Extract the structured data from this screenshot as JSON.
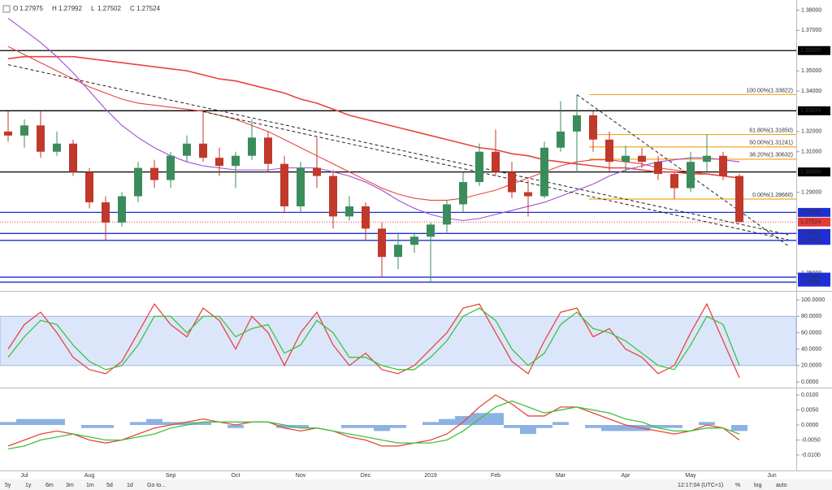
{
  "header": {
    "ohlc": [
      {
        "label": "O",
        "value": "1.27975"
      },
      {
        "label": "H",
        "value": "1.27992"
      },
      {
        "label": "L",
        "value": "1.27502"
      },
      {
        "label": "C",
        "value": "1.27524"
      }
    ]
  },
  "chart_data": {
    "type": "candlestick",
    "categories": [
      null,
      "Jul",
      null,
      null,
      null,
      "Aug",
      null,
      null,
      null,
      null,
      "Sep",
      null,
      null,
      null,
      "Oct",
      null,
      null,
      null,
      "Nov",
      null,
      null,
      null,
      "Dec",
      null,
      null,
      null,
      "2019",
      null,
      null,
      null,
      "Feb",
      null,
      null,
      null,
      "Mar",
      null,
      null,
      null,
      "Apr",
      null,
      null,
      null,
      "May",
      null,
      null,
      null,
      null,
      "Jun",
      null
    ],
    "open": [
      1.32,
      1.318,
      1.323,
      1.31,
      1.314,
      1.3,
      1.285,
      1.275,
      1.288,
      1.302,
      1.296,
      1.308,
      1.314,
      1.307,
      1.303,
      1.308,
      1.317,
      1.304,
      1.283,
      1.302,
      1.298,
      1.278,
      1.283,
      1.272,
      1.258,
      1.264,
      1.268,
      1.274,
      1.284,
      1.295,
      1.31,
      1.3,
      1.29,
      1.288,
      1.312,
      1.32,
      1.328,
      1.316,
      1.305,
      1.308,
      1.305,
      1.299,
      1.292,
      1.305,
      1.308,
      1.298,
      null,
      null,
      null
    ],
    "high": [
      1.33,
      1.326,
      1.33,
      1.32,
      1.316,
      1.302,
      1.288,
      1.29,
      1.305,
      1.306,
      1.31,
      1.318,
      1.3298,
      1.312,
      1.31,
      1.326,
      1.32,
      1.308,
      1.305,
      1.317,
      1.301,
      1.288,
      1.285,
      1.275,
      1.27,
      1.27,
      1.275,
      1.286,
      1.3,
      1.314,
      1.321,
      1.305,
      1.296,
      1.315,
      1.335,
      1.3382,
      1.33,
      1.32,
      1.313,
      1.312,
      1.308,
      1.3,
      1.31,
      1.3185,
      1.31,
      1.299,
      null,
      null,
      null
    ],
    "low": [
      1.315,
      1.312,
      1.307,
      1.308,
      1.298,
      1.282,
      1.2662,
      1.273,
      1.285,
      1.292,
      1.292,
      1.305,
      1.305,
      1.298,
      1.292,
      1.306,
      1.3,
      1.28,
      1.28,
      1.292,
      1.272,
      1.276,
      1.266,
      1.248,
      1.252,
      1.26,
      1.2456,
      1.27,
      1.28,
      1.293,
      1.298,
      1.287,
      1.278,
      1.287,
      1.31,
      1.3,
      1.31,
      1.3,
      1.3,
      1.302,
      1.296,
      1.2866,
      1.29,
      1.3,
      1.296,
      1.275,
      null,
      null,
      null
    ],
    "close": [
      1.318,
      1.323,
      1.31,
      1.314,
      1.3,
      1.285,
      1.275,
      1.288,
      1.302,
      1.296,
      1.308,
      1.314,
      1.307,
      1.303,
      1.308,
      1.317,
      1.304,
      1.283,
      1.302,
      1.298,
      1.278,
      1.283,
      1.272,
      1.258,
      1.264,
      1.268,
      1.274,
      1.284,
      1.295,
      1.31,
      1.3,
      1.29,
      1.288,
      1.312,
      1.32,
      1.328,
      1.316,
      1.305,
      1.308,
      1.305,
      1.299,
      1.292,
      1.305,
      1.308,
      1.298,
      1.27524,
      null,
      null,
      null
    ],
    "up_color": "#3b8c5c",
    "down_color": "#c0392b",
    "ylim": [
      1.2416,
      1.385
    ],
    "yticks": [
      {
        "value": 1.38,
        "label": "1.38000"
      },
      {
        "value": 1.37,
        "label": "1.37000"
      },
      {
        "value": 1.35,
        "label": "1.35000"
      },
      {
        "value": 1.34,
        "label": "1.34000"
      },
      {
        "value": 1.32,
        "label": "1.32000"
      },
      {
        "value": 1.31,
        "label": "1.31000"
      },
      {
        "value": 1.29,
        "label": "1.29000"
      },
      {
        "value": 1.25,
        "label": "1.25000"
      }
    ],
    "moving_averages": [
      {
        "color": "#e8453c",
        "values": [
          1.356,
          1.357,
          1.357,
          1.357,
          1.357,
          1.356,
          1.355,
          1.354,
          1.353,
          1.352,
          1.351,
          1.35,
          1.348,
          1.346,
          1.345,
          1.343,
          1.341,
          1.339,
          1.336,
          1.334,
          1.331,
          1.328,
          1.326,
          1.324,
          1.322,
          1.32,
          1.318,
          1.316,
          1.314,
          1.312,
          1.311,
          1.309,
          1.308,
          1.306,
          1.305,
          1.304,
          1.303,
          1.302,
          1.302,
          1.301,
          1.3,
          1.3,
          1.299,
          1.299,
          1.298,
          1.297,
          null,
          null,
          null
        ]
      },
      {
        "color": "#e8453c",
        "values": [
          1.362,
          1.358,
          1.354,
          1.35,
          1.346,
          1.342,
          1.339,
          1.336,
          1.334,
          1.333,
          1.332,
          1.331,
          1.33,
          1.328,
          1.326,
          1.323,
          1.32,
          1.316,
          1.312,
          1.308,
          1.304,
          1.3,
          1.296,
          1.292,
          1.289,
          1.287,
          1.286,
          1.286,
          1.287,
          1.289,
          1.291,
          1.294,
          1.297,
          1.3,
          1.303,
          1.305,
          1.306,
          1.306,
          1.305,
          1.304,
          1.302,
          1.301,
          1.3,
          1.299,
          1.298,
          1.297,
          null,
          null,
          null
        ]
      },
      {
        "color": "#a24bd8",
        "values": [
          1.376,
          1.37,
          1.364,
          1.357,
          1.349,
          1.34,
          1.331,
          1.323,
          1.317,
          1.312,
          1.308,
          1.305,
          1.303,
          1.302,
          1.301,
          1.301,
          1.301,
          1.302,
          1.302,
          1.302,
          1.3,
          1.298,
          1.295,
          1.291,
          1.286,
          1.282,
          1.279,
          1.277,
          1.276,
          1.277,
          1.279,
          1.281,
          1.283,
          1.285,
          1.288,
          1.291,
          1.294,
          1.298,
          1.301,
          1.303,
          1.305,
          1.306,
          1.307,
          1.307,
          1.306,
          1.305,
          null,
          null,
          null
        ]
      }
    ],
    "levels": [
      {
        "value": 1.36,
        "label": "1.36000",
        "color": "#000000"
      },
      {
        "value": 1.33024,
        "label": "1.33024",
        "color": "#000000"
      },
      {
        "value": 1.3,
        "label": "1.30000",
        "color": "#000000"
      },
      {
        "value": 1.28,
        "label": "1.28000",
        "color": "#1f2fd6"
      },
      {
        "value": 1.2696,
        "label": "1.26960",
        "color": "#1f2fd6"
      },
      {
        "value": 1.26618,
        "label": "1.26618",
        "color": "#1f2fd6"
      },
      {
        "value": 1.24801,
        "label": "1.24801",
        "color": "#1f2fd6"
      },
      {
        "value": 1.24555,
        "label": "1.24555",
        "color": "#1f2fd6"
      }
    ],
    "last_price": {
      "value": 1.27524,
      "label": "1.27524",
      "color": "#e53935"
    },
    "fibonacci": {
      "color": "#f5a623",
      "levels": [
        {
          "value": 1.33822,
          "label": "100.00%(1.33822)"
        },
        {
          "value": 1.3185,
          "label": "61.80%(1.31850)"
        },
        {
          "value": 1.31241,
          "label": "50.00%(1.31241)"
        },
        {
          "value": 1.30632,
          "label": "38.20%(1.30632)"
        },
        {
          "value": 1.2866,
          "label": "0.00%(1.28660)"
        }
      ]
    },
    "trendlines": [
      {
        "x": [
          0,
          48
        ],
        "values": [
          1.353,
          1.269
        ]
      },
      {
        "x": [
          12,
          48
        ],
        "values": [
          1.3298,
          1.2665
        ]
      },
      {
        "x": [
          35,
          48
        ],
        "values": [
          1.3382,
          1.2635
        ]
      }
    ],
    "stochastic": {
      "ylim": [
        -6,
        110
      ],
      "band": [
        20,
        80
      ],
      "yticks": [
        {
          "value": 100,
          "label": "100.0000"
        },
        {
          "value": 80,
          "label": "80.0000"
        },
        {
          "value": 60,
          "label": "60.0000"
        },
        {
          "value": 40,
          "label": "40.0000"
        },
        {
          "value": 20,
          "label": "20.0000"
        },
        {
          "value": 0,
          "label": "0.0000"
        }
      ],
      "series": [
        {
          "color": "#e8453c",
          "values": [
            40,
            70,
            85,
            60,
            30,
            15,
            10,
            25,
            60,
            95,
            70,
            55,
            90,
            75,
            40,
            80,
            60,
            20,
            60,
            85,
            45,
            20,
            35,
            15,
            10,
            20,
            40,
            60,
            90,
            95,
            60,
            25,
            10,
            50,
            85,
            90,
            55,
            65,
            40,
            30,
            10,
            20,
            60,
            95,
            50,
            5,
            null,
            null,
            null
          ]
        },
        {
          "color": "#3fc23f",
          "values": [
            30,
            55,
            75,
            70,
            45,
            25,
            15,
            20,
            45,
            80,
            80,
            60,
            80,
            80,
            55,
            65,
            70,
            35,
            45,
            75,
            60,
            30,
            30,
            20,
            15,
            15,
            30,
            50,
            80,
            90,
            75,
            40,
            20,
            35,
            70,
            85,
            65,
            60,
            50,
            35,
            20,
            15,
            45,
            80,
            70,
            20,
            null,
            null,
            null
          ]
        }
      ]
    },
    "macd": {
      "ylim": [
        -0.0149,
        0.0122
      ],
      "yticks": [
        {
          "value": 0.01,
          "label": "0.0100"
        },
        {
          "value": 0.005,
          "label": "0.0050"
        },
        {
          "value": 0,
          "label": "0.0000"
        },
        {
          "value": -0.005,
          "label": "-0.0050"
        },
        {
          "value": -0.01,
          "label": "-0.0100"
        }
      ],
      "histogram": {
        "color": "#6f9fdc",
        "values": [
          0.001,
          0.002,
          0.002,
          0.002,
          0,
          -0.001,
          -0.001,
          0,
          0.001,
          0.002,
          0.001,
          0.001,
          0.001,
          0,
          -0.001,
          0,
          0,
          -0.001,
          -0.001,
          0,
          0,
          -0.001,
          -0.001,
          -0.002,
          -0.001,
          0,
          0.001,
          0.002,
          0.003,
          0.004,
          0.004,
          -0.001,
          -0.003,
          -0.001,
          0.001,
          0,
          -0.001,
          -0.002,
          -0.002,
          -0.002,
          -0.001,
          -0.001,
          0,
          0.001,
          0,
          -0.002,
          null,
          null,
          null
        ]
      },
      "series": [
        {
          "color": "#e8453c",
          "values": [
            -0.007,
            -0.005,
            -0.003,
            -0.002,
            -0.003,
            -0.005,
            -0.006,
            -0.005,
            -0.003,
            -0.001,
            0,
            0.001,
            0.002,
            0.001,
            0,
            0.001,
            0.001,
            -0.001,
            -0.002,
            -0.001,
            -0.002,
            -0.004,
            -0.005,
            -0.007,
            -0.007,
            -0.006,
            -0.005,
            -0.003,
            0.001,
            0.006,
            0.01,
            0.007,
            0.003,
            0.003,
            0.006,
            0.006,
            0.004,
            0.002,
            0,
            -0.001,
            -0.002,
            -0.003,
            -0.002,
            0,
            -0.001,
            -0.005,
            null,
            null,
            null
          ]
        },
        {
          "color": "#3fc23f",
          "values": [
            -0.008,
            -0.007,
            -0.005,
            -0.004,
            -0.003,
            -0.004,
            -0.005,
            -0.005,
            -0.004,
            -0.003,
            -0.001,
            0,
            0.001,
            0.001,
            0.001,
            0.001,
            0.001,
            0,
            -0.001,
            -0.001,
            -0.002,
            -0.003,
            -0.004,
            -0.005,
            -0.006,
            -0.006,
            -0.006,
            -0.005,
            -0.002,
            0.002,
            0.006,
            0.008,
            0.006,
            0.004,
            0.005,
            0.006,
            0.005,
            0.004,
            0.002,
            0.001,
            -0.001,
            -0.002,
            -0.002,
            -0.001,
            -0.001,
            -0.003,
            null,
            null,
            null
          ]
        }
      ]
    }
  },
  "toolbar": {
    "ranges": [
      "5y",
      "1y",
      "6m",
      "3m",
      "1m",
      "5d",
      "1d"
    ],
    "goto": "Go to...",
    "time": "12:17:04 (UTC+1)",
    "options": [
      "%",
      "log",
      "auto"
    ]
  }
}
